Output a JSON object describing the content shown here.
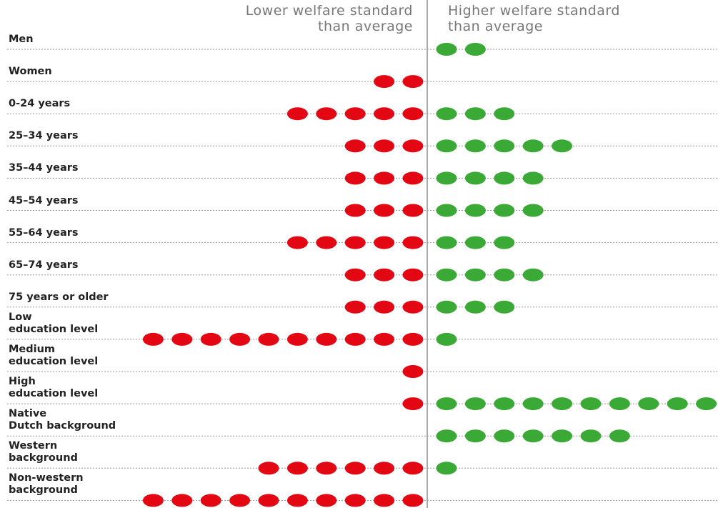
{
  "chart_data": {
    "type": "dot",
    "categories": [
      "Men",
      "Women",
      "0-24 years",
      "25–34 years",
      "35–44 years",
      "45–54 years",
      "55–64 years",
      "65–74 years",
      "75 years or older",
      "Low\neducation level",
      "Medium\neducation level",
      "High\neducation level",
      "Native\nDutch background",
      "Western\nbackground",
      "Non-western\nbackground"
    ],
    "series": [
      {
        "name": "Lower welfare standard\nthan average",
        "color": "#e30613",
        "values": [
          0,
          2,
          5,
          3,
          3,
          3,
          5,
          3,
          3,
          10,
          1,
          1,
          0,
          6,
          10
        ]
      },
      {
        "name": "Higher welfare standard\nthan average",
        "color": "#3aa935",
        "values": [
          2,
          0,
          3,
          5,
          4,
          4,
          3,
          4,
          3,
          1,
          0,
          10,
          7,
          1,
          0
        ]
      }
    ]
  }
}
